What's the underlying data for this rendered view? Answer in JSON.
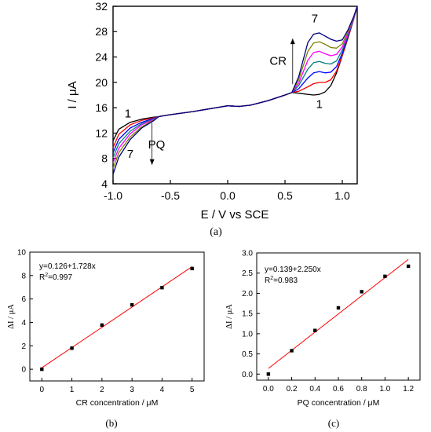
{
  "panel_labels": [
    "(a)",
    "(b)",
    "(c)"
  ],
  "chart_data": [
    {
      "panel": "(a)",
      "type": "line",
      "title": "",
      "xlabel": "E / V vs SCE",
      "ylabel": "I / μA",
      "xlim": [
        -1.0,
        1.13
      ],
      "ylim": [
        4,
        32
      ],
      "xticks": [
        -1.0,
        -0.5,
        0.0,
        0.5,
        1.0
      ],
      "xtick_labels": [
        "-1.0",
        "-0.5",
        "0.0",
        "0.5",
        "1.0"
      ],
      "yticks": [
        4,
        8,
        12,
        16,
        20,
        24,
        28,
        32
      ],
      "ytick_labels": [
        "4",
        "8",
        "12",
        "16",
        "20",
        "24",
        "28",
        "32"
      ],
      "grid": false,
      "series": [
        {
          "color": "#000000",
          "x": [
            -1.0,
            -0.95,
            -0.85,
            -0.75,
            -0.65,
            -0.6,
            -0.5,
            -0.3,
            -0.1,
            0.0,
            0.1,
            0.2,
            0.35,
            0.5,
            0.56,
            0.62,
            0.7,
            0.75,
            0.8,
            0.85,
            0.9,
            0.95,
            1.0,
            1.05,
            1.1,
            1.13
          ],
          "y": [
            10.8,
            12.6,
            13.7,
            14.2,
            14.5,
            14.6,
            14.9,
            15.4,
            16.0,
            16.3,
            16.2,
            16.4,
            17.1,
            18.0,
            18.4,
            18.3,
            18.1,
            18.0,
            18.1,
            18.5,
            19.5,
            21.5,
            24.2,
            27.0,
            30.0,
            32.0
          ]
        },
        {
          "color": "#ff0000",
          "x": [
            -1.0,
            -0.95,
            -0.85,
            -0.75,
            -0.65,
            -0.6,
            -0.5,
            -0.3,
            -0.1,
            0.0,
            0.1,
            0.2,
            0.35,
            0.5,
            0.56,
            0.62,
            0.7,
            0.75,
            0.8,
            0.85,
            0.9,
            0.95,
            1.0,
            1.05,
            1.1,
            1.13
          ],
          "y": [
            9.7,
            11.8,
            13.3,
            14.0,
            14.4,
            14.6,
            14.9,
            15.4,
            16.0,
            16.3,
            16.2,
            16.4,
            17.1,
            18.0,
            18.4,
            18.6,
            19.3,
            19.8,
            20.0,
            20.0,
            20.4,
            21.8,
            24.3,
            27.0,
            30.0,
            32.0
          ]
        },
        {
          "color": "#0000ff",
          "x": [
            -1.0,
            -0.95,
            -0.85,
            -0.75,
            -0.65,
            -0.6,
            -0.5,
            -0.3,
            -0.1,
            0.0,
            0.1,
            0.2,
            0.35,
            0.5,
            0.56,
            0.62,
            0.7,
            0.75,
            0.8,
            0.85,
            0.9,
            0.95,
            1.0,
            1.05,
            1.1,
            1.13
          ],
          "y": [
            8.9,
            11.0,
            12.8,
            13.7,
            14.3,
            14.6,
            14.9,
            15.4,
            16.0,
            16.3,
            16.2,
            16.4,
            17.1,
            18.0,
            18.4,
            19.0,
            20.7,
            21.5,
            21.7,
            21.5,
            21.6,
            22.5,
            24.6,
            27.2,
            30.0,
            32.0
          ]
        },
        {
          "color": "#008080",
          "x": [
            -1.0,
            -0.95,
            -0.85,
            -0.75,
            -0.65,
            -0.6,
            -0.5,
            -0.3,
            -0.1,
            0.0,
            0.1,
            0.2,
            0.35,
            0.5,
            0.56,
            0.62,
            0.7,
            0.75,
            0.8,
            0.85,
            0.9,
            0.95,
            1.0,
            1.05,
            1.1,
            1.13
          ],
          "y": [
            8.1,
            10.3,
            12.3,
            13.5,
            14.2,
            14.6,
            14.9,
            15.4,
            16.0,
            16.3,
            16.2,
            16.4,
            17.1,
            18.0,
            18.4,
            19.5,
            22.1,
            23.1,
            23.3,
            23.0,
            22.9,
            23.4,
            25.1,
            27.4,
            30.1,
            32.0
          ]
        },
        {
          "color": "#ff00ff",
          "x": [
            -1.0,
            -0.95,
            -0.85,
            -0.75,
            -0.65,
            -0.6,
            -0.5,
            -0.3,
            -0.1,
            0.0,
            0.1,
            0.2,
            0.35,
            0.5,
            0.56,
            0.62,
            0.7,
            0.75,
            0.8,
            0.85,
            0.9,
            0.95,
            1.0,
            1.05,
            1.1,
            1.13
          ],
          "y": [
            7.3,
            9.6,
            11.9,
            13.3,
            14.1,
            14.6,
            14.9,
            15.4,
            16.0,
            16.3,
            16.2,
            16.4,
            17.1,
            18.0,
            18.4,
            19.9,
            23.5,
            24.7,
            24.9,
            24.5,
            24.2,
            24.4,
            25.6,
            27.7,
            30.2,
            32.0
          ]
        },
        {
          "color": "#808000",
          "x": [
            -1.0,
            -0.95,
            -0.85,
            -0.75,
            -0.65,
            -0.6,
            -0.5,
            -0.3,
            -0.1,
            0.0,
            0.1,
            0.2,
            0.35,
            0.5,
            0.56,
            0.62,
            0.7,
            0.75,
            0.8,
            0.85,
            0.9,
            0.95,
            1.0,
            1.05,
            1.1,
            1.13
          ],
          "y": [
            6.4,
            8.9,
            11.4,
            13.0,
            14.0,
            14.6,
            14.9,
            15.4,
            16.0,
            16.3,
            16.2,
            16.4,
            17.1,
            18.0,
            18.4,
            20.4,
            24.9,
            26.2,
            26.4,
            26.0,
            25.5,
            25.4,
            26.1,
            28.0,
            30.3,
            32.0
          ]
        },
        {
          "color": "#000080",
          "x": [
            -1.0,
            -0.95,
            -0.85,
            -0.75,
            -0.65,
            -0.6,
            -0.5,
            -0.3,
            -0.1,
            0.0,
            0.1,
            0.2,
            0.35,
            0.5,
            0.56,
            0.62,
            0.7,
            0.75,
            0.8,
            0.85,
            0.9,
            0.95,
            1.0,
            1.05,
            1.1,
            1.13
          ],
          "y": [
            5.5,
            8.2,
            11.0,
            12.8,
            13.9,
            14.6,
            14.9,
            15.4,
            16.0,
            16.3,
            16.2,
            16.4,
            17.1,
            18.0,
            18.4,
            20.9,
            26.3,
            27.6,
            27.8,
            27.3,
            26.8,
            26.5,
            26.7,
            28.3,
            30.4,
            32.0
          ]
        }
      ],
      "annotations": [
        {
          "text": "1",
          "x": -0.87,
          "y": 15.1
        },
        {
          "text": "7",
          "x": -0.85,
          "y": 8.7
        },
        {
          "text": "PQ",
          "x": -0.62,
          "y": 10.2
        },
        {
          "text": "CR",
          "x": 0.44,
          "y": 23.4
        },
        {
          "text": "7",
          "x": 0.76,
          "y": 30.1
        },
        {
          "text": "1",
          "x": 0.8,
          "y": 16.6
        }
      ],
      "arrows": [
        {
          "label": "PQ",
          "x": -0.66,
          "y_from": 13.6,
          "y_to": 7.0
        },
        {
          "label": "CR",
          "x": 0.567,
          "y_from": 19.7,
          "y_to": 26.9
        }
      ]
    },
    {
      "panel": "(b)",
      "type": "scatter",
      "title": "",
      "xlabel": "CR concentration / μM",
      "ylabel": "ΔI / μA",
      "xlim": [
        -0.4,
        5.4
      ],
      "ylim": [
        -1.0,
        10
      ],
      "xticks": [
        0,
        1,
        2,
        3,
        4,
        5
      ],
      "xtick_labels": [
        "0",
        "1",
        "2",
        "3",
        "4",
        "5"
      ],
      "yticks": [
        0,
        2,
        4,
        6,
        8,
        10
      ],
      "ytick_labels": [
        "0",
        "2",
        "4",
        "6",
        "8",
        "10"
      ],
      "grid": false,
      "x": [
        0,
        1,
        2,
        3,
        4,
        5
      ],
      "y": [
        0.0,
        1.8,
        3.77,
        5.5,
        6.97,
        8.6
      ],
      "fit": {
        "intercept": 0.126,
        "slope": 1.728,
        "x_range": [
          0,
          5
        ],
        "color": "#ff0000"
      },
      "annotation_lines": [
        "y=0.126+1.728x",
        "R",
        "2",
        "=0.997"
      ]
    },
    {
      "panel": "(c)",
      "type": "scatter",
      "title": "",
      "xlabel": "PQ concentration / μM",
      "ylabel": "ΔI / μA",
      "xlim": [
        -0.1,
        1.3
      ],
      "ylim": [
        -0.15,
        3.0
      ],
      "xticks": [
        0.0,
        0.2,
        0.4,
        0.6,
        0.8,
        1.0,
        1.2
      ],
      "xtick_labels": [
        "0.0",
        "0.2",
        "0.4",
        "0.6",
        "0.8",
        "1.0",
        "1.2"
      ],
      "yticks": [
        0.0,
        0.5,
        1.0,
        1.5,
        2.0,
        2.5,
        3.0
      ],
      "ytick_labels": [
        "0.0",
        "0.5",
        "1.0",
        "1.5",
        "2.0",
        "2.5",
        "3.0"
      ],
      "grid": false,
      "x": [
        0.0,
        0.2,
        0.4,
        0.6,
        0.8,
        1.0,
        1.2
      ],
      "y": [
        0.0,
        0.58,
        1.08,
        1.64,
        2.04,
        2.42,
        2.67
      ],
      "fit": {
        "intercept": 0.139,
        "slope": 2.25,
        "x_range": [
          0,
          1.2
        ],
        "color": "#ff0000"
      },
      "annotation_lines": [
        "y=0.139+2.250x",
        "R",
        "2",
        "=0.983"
      ]
    }
  ]
}
